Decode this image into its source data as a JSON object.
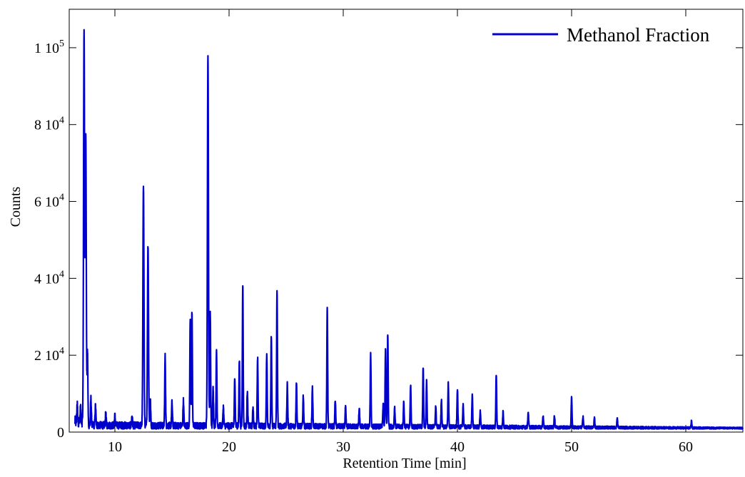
{
  "chart_data": {
    "type": "line",
    "title": "",
    "xlabel": "Retention Time [min]",
    "ylabel": "Counts",
    "xlim": [
      6,
      65
    ],
    "ylim": [
      0,
      110000
    ],
    "grid": false,
    "legend_position": "top-right",
    "x_ticks": [
      10,
      20,
      30,
      40,
      50,
      60
    ],
    "x_tick_labels": [
      "10",
      "20",
      "30",
      "40",
      "50",
      "60"
    ],
    "y_ticks": [
      0,
      20000,
      40000,
      60000,
      80000,
      100000
    ],
    "y_tick_labels": [
      {
        "mantissa": "0",
        "exponent": ""
      },
      {
        "mantissa": "2 10",
        "exponent": "4"
      },
      {
        "mantissa": "4 10",
        "exponent": "4"
      },
      {
        "mantissa": "6 10",
        "exponent": "4"
      },
      {
        "mantissa": "8 10",
        "exponent": "4"
      },
      {
        "mantissa": "1 10",
        "exponent": "5"
      }
    ],
    "series": [
      {
        "name": "Methanol Fraction",
        "color": "#0000cc",
        "baseline": 800,
        "peaks": [
          [
            6.7,
            4000
          ],
          [
            7.0,
            3500
          ],
          [
            7.3,
            102000
          ],
          [
            7.45,
            75000
          ],
          [
            7.6,
            19000
          ],
          [
            7.9,
            7000
          ],
          [
            8.3,
            5000
          ],
          [
            9.2,
            3000
          ],
          [
            10.0,
            2500
          ],
          [
            11.5,
            2500
          ],
          [
            12.5,
            63000
          ],
          [
            12.9,
            47000
          ],
          [
            13.1,
            7000
          ],
          [
            14.4,
            18000
          ],
          [
            15.0,
            6000
          ],
          [
            16.0,
            6500
          ],
          [
            16.6,
            28000
          ],
          [
            16.75,
            30000
          ],
          [
            18.15,
            97000
          ],
          [
            18.35,
            30000
          ],
          [
            18.6,
            10000
          ],
          [
            18.9,
            19000
          ],
          [
            19.5,
            5000
          ],
          [
            20.5,
            13000
          ],
          [
            20.9,
            17000
          ],
          [
            21.2,
            37000
          ],
          [
            21.6,
            9000
          ],
          [
            22.1,
            5000
          ],
          [
            22.5,
            18000
          ],
          [
            23.3,
            19000
          ],
          [
            23.7,
            23500
          ],
          [
            24.2,
            35000
          ],
          [
            25.1,
            11000
          ],
          [
            25.9,
            11500
          ],
          [
            26.5,
            8000
          ],
          [
            27.3,
            10000
          ],
          [
            28.6,
            31000
          ],
          [
            29.3,
            7000
          ],
          [
            30.2,
            5000
          ],
          [
            31.4,
            4500
          ],
          [
            32.4,
            19000
          ],
          [
            33.5,
            6000
          ],
          [
            33.7,
            20000
          ],
          [
            33.9,
            24000
          ],
          [
            34.5,
            5000
          ],
          [
            35.3,
            6500
          ],
          [
            35.9,
            11000
          ],
          [
            37.0,
            15500
          ],
          [
            37.3,
            12000
          ],
          [
            38.1,
            5500
          ],
          [
            38.6,
            7000
          ],
          [
            39.2,
            11500
          ],
          [
            40.0,
            10000
          ],
          [
            40.5,
            6000
          ],
          [
            41.3,
            8500
          ],
          [
            42.0,
            4000
          ],
          [
            43.4,
            13500
          ],
          [
            44.0,
            4000
          ],
          [
            46.2,
            4000
          ],
          [
            47.5,
            3000
          ],
          [
            48.5,
            3000
          ],
          [
            50.0,
            7800
          ],
          [
            51.0,
            3000
          ],
          [
            52.0,
            2500
          ],
          [
            54.0,
            2500
          ],
          [
            60.5,
            1800
          ]
        ]
      }
    ]
  }
}
